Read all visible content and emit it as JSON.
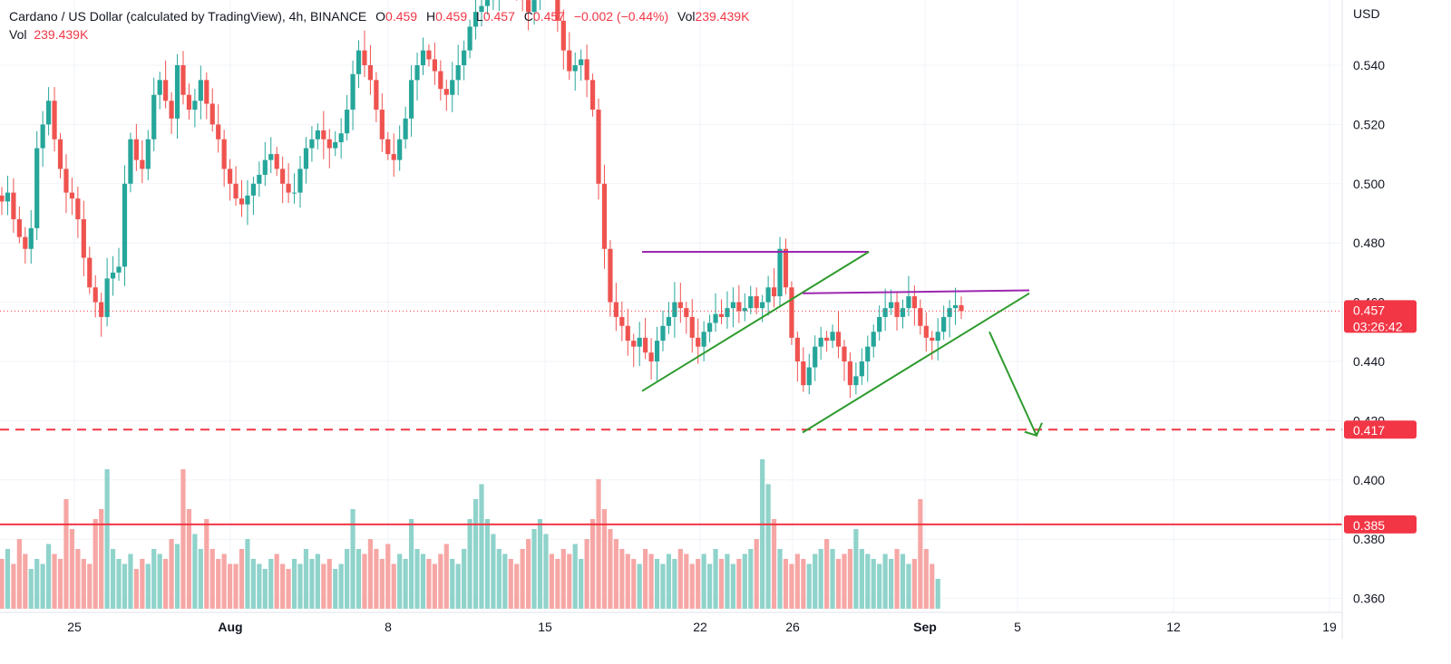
{
  "legend": {
    "symbol": "Cardano / US Dollar (calculated by TradingView), 4h, BINANCE",
    "o_label": "O",
    "o_value": "0.459",
    "h_label": "H",
    "h_value": "0.459",
    "l_label": "L",
    "l_value": "0.457",
    "c_label": "C",
    "c_value": "0.457",
    "change": "−0.002 (−0.44%)",
    "vol_label": "Vol",
    "vol_value": "239.439K",
    "vol_row_label": "Vol",
    "vol_row_value": "239.439K"
  },
  "colors": {
    "up": "#26a69a",
    "down": "#ef5350",
    "up_vol": "#8fd3cb",
    "down_vol": "#f6a7a5",
    "resistance": "#9c27b0",
    "trendline": "#2e9b2e",
    "level": "#f23645",
    "grid": "#f0f3fa"
  },
  "chart_data": {
    "type": "candlestick",
    "title": "Cardano / US Dollar (calculated by TradingView), 4h, BINANCE",
    "y_unit": "USD",
    "y_ticks": [
      0.54,
      0.52,
      0.5,
      0.48,
      0.46,
      0.44,
      0.42,
      0.4,
      0.38,
      0.36
    ],
    "y_tick_labels": [
      "0.540",
      "0.520",
      "0.500",
      "0.480",
      "0.460",
      "0.440",
      "0.420",
      "0.400",
      "0.380",
      "0.360"
    ],
    "x_tick_labels": [
      "25",
      "Aug",
      "8",
      "15",
      "22",
      "26",
      "Sep",
      "5",
      "12",
      "19"
    ],
    "x_tick_bold": [
      false,
      true,
      false,
      false,
      false,
      false,
      true,
      false,
      false,
      false
    ],
    "current_price": "0.457",
    "countdown": "03:26:42",
    "levels": [
      {
        "value": 0.417,
        "label": "0.417",
        "style": "dashed"
      },
      {
        "value": 0.385,
        "label": "0.385",
        "style": "solid"
      }
    ],
    "close_path": [
      0.494,
      0.497,
      0.488,
      0.482,
      0.478,
      0.485,
      0.512,
      0.52,
      0.528,
      0.515,
      0.505,
      0.497,
      0.495,
      0.488,
      0.475,
      0.465,
      0.46,
      0.455,
      0.468,
      0.47,
      0.472,
      0.5,
      0.515,
      0.508,
      0.505,
      0.515,
      0.53,
      0.535,
      0.528,
      0.522,
      0.54,
      0.53,
      0.525,
      0.528,
      0.535,
      0.527,
      0.52,
      0.515,
      0.505,
      0.5,
      0.495,
      0.493,
      0.496,
      0.5,
      0.503,
      0.508,
      0.51,
      0.505,
      0.5,
      0.497,
      0.497,
      0.505,
      0.512,
      0.515,
      0.518,
      0.515,
      0.512,
      0.514,
      0.517,
      0.525,
      0.537,
      0.545,
      0.54,
      0.535,
      0.525,
      0.515,
      0.51,
      0.508,
      0.515,
      0.522,
      0.535,
      0.54,
      0.545,
      0.542,
      0.538,
      0.532,
      0.53,
      0.535,
      0.54,
      0.545,
      0.553,
      0.558,
      0.56,
      0.562,
      0.565,
      0.57,
      0.572,
      0.57,
      0.568,
      0.562,
      0.558,
      0.562,
      0.568,
      0.57,
      0.565,
      0.555,
      0.545,
      0.538,
      0.54,
      0.542,
      0.535,
      0.525,
      0.5,
      0.478,
      0.46,
      0.455,
      0.452,
      0.447,
      0.445,
      0.448,
      0.443,
      0.44,
      0.447,
      0.452,
      0.455,
      0.46,
      0.458,
      0.455,
      0.448,
      0.445,
      0.45,
      0.453,
      0.456,
      0.455,
      0.458,
      0.46,
      0.457,
      0.458,
      0.462,
      0.458,
      0.46,
      0.465,
      0.462,
      0.478,
      0.465,
      0.448,
      0.44,
      0.432,
      0.438,
      0.445,
      0.448,
      0.447,
      0.45,
      0.445,
      0.44,
      0.432,
      0.435,
      0.44,
      0.445,
      0.45,
      0.455,
      0.458,
      0.46,
      0.455,
      0.458,
      0.462,
      0.458,
      0.452,
      0.448,
      0.447,
      0.45,
      0.455,
      0.458,
      0.459,
      0.457
    ],
    "volume_path": [
      10,
      12,
      9,
      14,
      11,
      8,
      10,
      9,
      13,
      11,
      10,
      22,
      16,
      12,
      10,
      9,
      18,
      20,
      28,
      12,
      10,
      9,
      11,
      8,
      10,
      9,
      12,
      11,
      10,
      14,
      13,
      28,
      20,
      15,
      12,
      18,
      12,
      10,
      11,
      9,
      9,
      12,
      14,
      10,
      9,
      8,
      10,
      11,
      9,
      8,
      10,
      9,
      12,
      10,
      11,
      9,
      10,
      8,
      9,
      12,
      20,
      12,
      11,
      14,
      12,
      10,
      13,
      9,
      11,
      10,
      18,
      12,
      11,
      10,
      9,
      11,
      13,
      10,
      9,
      12,
      18,
      22,
      25,
      18,
      15,
      12,
      11,
      10,
      9,
      12,
      14,
      16,
      18,
      15,
      11,
      10,
      12,
      11,
      13,
      10,
      14,
      18,
      26,
      20,
      16,
      14,
      12,
      11,
      10,
      9,
      12,
      11,
      10,
      9,
      11,
      10,
      12,
      11,
      9,
      10,
      11,
      9,
      12,
      10,
      11,
      9,
      10,
      11,
      12,
      14,
      30,
      25,
      18,
      12,
      10,
      9,
      11,
      10,
      9,
      11,
      12,
      14,
      12,
      10,
      11,
      12,
      16,
      12,
      11,
      10,
      9,
      11,
      10,
      12,
      11,
      9,
      10,
      22,
      12,
      9,
      6
    ],
    "trendlines": [
      {
        "name": "purple-resistance-1",
        "x": [
          "Aug 19",
          "Aug 28"
        ],
        "y": [
          0.477,
          0.477
        ]
      },
      {
        "name": "green-support-1",
        "x": [
          "Aug 19",
          "Aug 28"
        ],
        "y": [
          0.43,
          0.477
        ]
      },
      {
        "name": "purple-resistance-2",
        "x": [
          "Aug 26",
          "Sep 5"
        ],
        "y": [
          0.463,
          0.464
        ]
      },
      {
        "name": "green-support-2",
        "x": [
          "Aug 26",
          "Sep 5"
        ],
        "y": [
          0.416,
          0.463
        ]
      },
      {
        "name": "green-arrow",
        "x": [
          "Sep 4",
          "Sep 6"
        ],
        "y": [
          0.45,
          0.415
        ]
      }
    ]
  }
}
